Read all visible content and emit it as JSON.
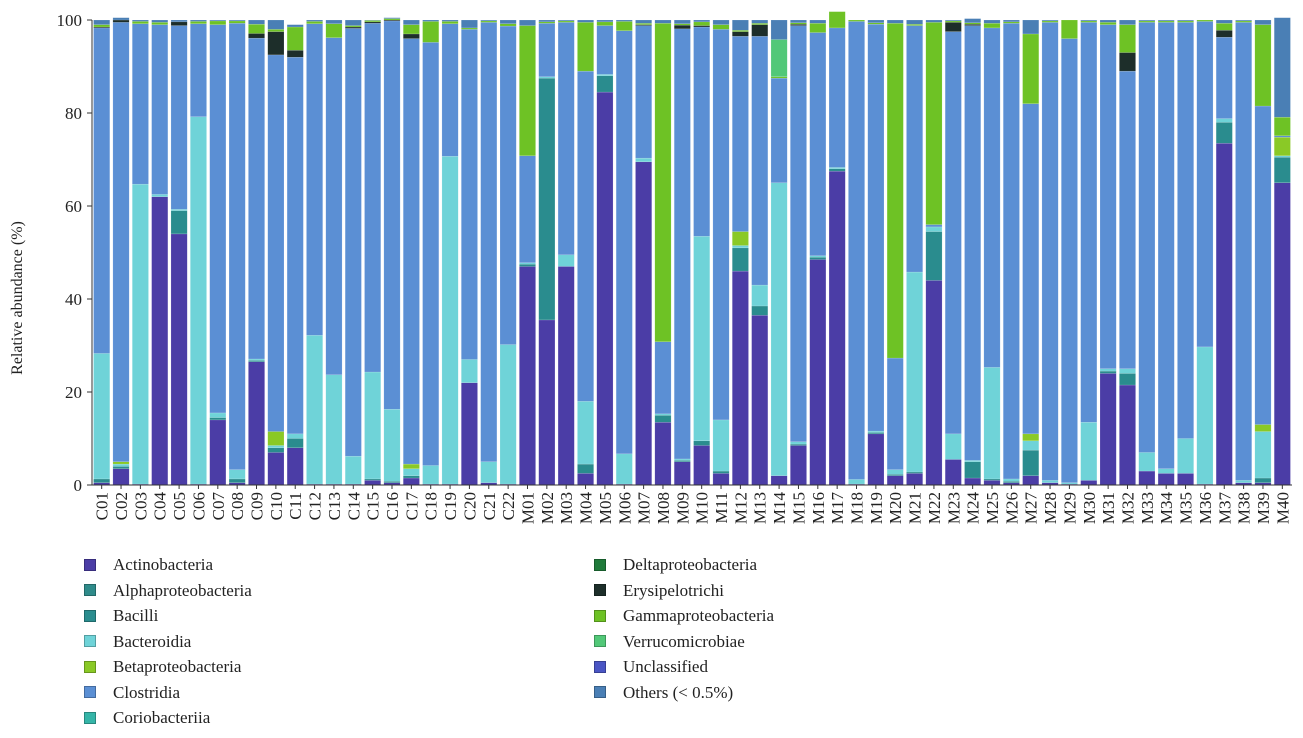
{
  "chart_data": {
    "type": "bar",
    "stacked": true,
    "title": "",
    "xlabel": "",
    "ylabel": "Relative abundance (%)",
    "ylim": [
      0,
      100
    ],
    "yticks": [
      0,
      20,
      40,
      60,
      80,
      100
    ],
    "grid": false,
    "legend_position": "bottom",
    "categories": [
      "C01",
      "C02",
      "C03",
      "C04",
      "C05",
      "C06",
      "C07",
      "C08",
      "C09",
      "C10",
      "C11",
      "C12",
      "C13",
      "C14",
      "C15",
      "C16",
      "C17",
      "C18",
      "C19",
      "C20",
      "C21",
      "C22",
      "M01",
      "M02",
      "M03",
      "M04",
      "M05",
      "M06",
      "M07",
      "M08",
      "M09",
      "M10",
      "M11",
      "M12",
      "M13",
      "M14",
      "M15",
      "M16",
      "M17",
      "M18",
      "M19",
      "M20",
      "M21",
      "M22",
      "M23",
      "M24",
      "M25",
      "M26",
      "M27",
      "M28",
      "M29",
      "M30",
      "M31",
      "M32",
      "M33",
      "M34",
      "M35",
      "M36",
      "M37",
      "M38",
      "M39",
      "M40"
    ],
    "series": [
      {
        "name": "Actinobacteria",
        "color": "#4b3da6",
        "values": [
          0.5,
          3.5,
          0.2,
          62.0,
          54.0,
          0.2,
          14.0,
          0.5,
          26.5,
          7.0,
          8.0,
          0.2,
          0.2,
          0.2,
          1.0,
          0.5,
          1.5,
          0.2,
          0.2,
          22.0,
          0.5,
          0.2,
          47.0,
          35.5,
          47.0,
          2.5,
          84.5,
          0.2,
          69.5,
          13.5,
          5.0,
          8.5,
          2.5,
          46.0,
          36.5,
          2.0,
          8.5,
          48.5,
          67.5,
          0.2,
          11.0,
          2.0,
          2.5,
          44.0,
          5.5,
          1.5,
          1.0,
          0.5,
          2.0,
          0.5,
          0.2,
          1.0,
          24.0,
          21.5,
          3.0,
          2.5,
          2.5,
          0.2,
          73.5,
          0.5,
          0.5,
          65.0
        ]
      },
      {
        "name": "Alphaproteobacteria",
        "color": "#2f8b8a",
        "values": [
          0,
          0,
          0,
          0,
          0,
          0,
          0,
          0,
          0,
          0,
          0,
          0,
          0,
          0,
          0,
          0,
          0,
          0,
          0,
          0,
          0,
          0,
          0,
          0,
          0,
          0,
          0,
          0,
          0,
          0,
          0,
          0,
          0,
          0,
          0,
          0,
          0,
          0,
          0,
          0,
          0,
          0,
          0,
          0,
          0,
          0,
          0,
          0,
          0,
          0,
          0,
          0,
          0,
          0,
          0,
          0,
          0,
          0,
          0,
          0,
          0,
          0
        ]
      },
      {
        "name": "Bacilli",
        "color": "#2a8c8e",
        "values": [
          0.8,
          0.5,
          0,
          0,
          5.0,
          0,
          0.5,
          0.8,
          0.3,
          1.0,
          2.0,
          0,
          0,
          0,
          0.3,
          0.3,
          0.5,
          0,
          0,
          0,
          0,
          0,
          0.5,
          52.0,
          0,
          2.0,
          3.5,
          0,
          0,
          1.5,
          0.3,
          1.0,
          0.5,
          5.0,
          2.0,
          0,
          0.3,
          0.5,
          0.5,
          0,
          0.3,
          0.3,
          0.3,
          10.5,
          0,
          3.5,
          0.3,
          0.3,
          5.5,
          0,
          0,
          0,
          0.5,
          2.5,
          0,
          0,
          0,
          0,
          4.5,
          0,
          1.0,
          5.5
        ]
      },
      {
        "name": "Bacteroidia",
        "color": "#6fd3d8",
        "values": [
          27.0,
          0.5,
          64.5,
          0.5,
          0.3,
          79.0,
          1.0,
          2.0,
          0.3,
          0.5,
          1.0,
          32.0,
          23.5,
          6.0,
          23.0,
          15.5,
          1.5,
          4.0,
          70.5,
          5.0,
          4.5,
          30.0,
          0.3,
          0.3,
          2.5,
          13.5,
          0.3,
          6.5,
          0.8,
          0.3,
          0.3,
          44.0,
          11.0,
          0.5,
          4.5,
          63.0,
          0.5,
          0.3,
          0.3,
          1.0,
          0.3,
          1.0,
          43.0,
          1.0,
          5.5,
          0.3,
          24.0,
          0.5,
          2.0,
          0.5,
          0.3,
          12.5,
          0.5,
          1.0,
          4.0,
          1.0,
          7.5,
          29.5,
          0.8,
          0.5,
          10.0,
          0.3
        ]
      },
      {
        "name": "Betaproteobacteria",
        "color": "#8ac926",
        "values": [
          0,
          0.5,
          0,
          0,
          0,
          0,
          0,
          0,
          0,
          3.0,
          0,
          0,
          0,
          0,
          0,
          0,
          1.0,
          0,
          0,
          0,
          0,
          0,
          0,
          0,
          0,
          0,
          0,
          0,
          0,
          0,
          0,
          0,
          0,
          3.0,
          0,
          0,
          0,
          0,
          0,
          0,
          0,
          0,
          0,
          0,
          0,
          0,
          0,
          0,
          1.5,
          0,
          0,
          0,
          0,
          0,
          0,
          0,
          0,
          0,
          0,
          0,
          1.5,
          4.0
        ]
      },
      {
        "name": "Clostridia",
        "color": "#5b8fd4",
        "values": [
          70.0,
          94.5,
          34.5,
          36.5,
          39.5,
          20.0,
          83.5,
          96.0,
          69.0,
          81.0,
          81.0,
          67.0,
          72.5,
          92.0,
          75.0,
          83.5,
          91.5,
          91.0,
          28.5,
          71.0,
          94.5,
          68.5,
          23.0,
          11.5,
          50.0,
          71.0,
          10.5,
          91.0,
          28.5,
          15.5,
          92.5,
          45.0,
          84.0,
          42.0,
          53.5,
          22.5,
          89.5,
          48.0,
          30.0,
          98.5,
          87.5,
          24.0,
          53.0,
          0.5,
          86.5,
          93.5,
          73.0,
          98.0,
          71.0,
          98.5,
          95.5,
          86.0,
          74.0,
          64.0,
          92.5,
          96.0,
          89.5,
          70.0,
          17.5,
          98.5,
          68.5,
          0.3
        ]
      },
      {
        "name": "Coriobacteriia",
        "color": "#35b5a8",
        "values": [
          0,
          0,
          0,
          0,
          0,
          0,
          0,
          0,
          0,
          0,
          0,
          0,
          0,
          0,
          0,
          0,
          0,
          0,
          0,
          0,
          0,
          0,
          0,
          0,
          0,
          0,
          0,
          0,
          0,
          0,
          0,
          0,
          0,
          0,
          0,
          0,
          0,
          0,
          0,
          0,
          0,
          0,
          0,
          0,
          0,
          0,
          0,
          0,
          0,
          0,
          0,
          0,
          0,
          0,
          0,
          0,
          0,
          0,
          0,
          0,
          0,
          0
        ]
      },
      {
        "name": "Deltaproteobacteria",
        "color": "#1f7a3a",
        "values": [
          0,
          0,
          0,
          0,
          0,
          0,
          0,
          0,
          0,
          0,
          0,
          0,
          0,
          0,
          0,
          0,
          0,
          0,
          0,
          0,
          0,
          0,
          0,
          0,
          0,
          0,
          0,
          0,
          0,
          0,
          0,
          0,
          0,
          0,
          0,
          0,
          0,
          0,
          0,
          0,
          0,
          0,
          0,
          0,
          0,
          0,
          0,
          0,
          0,
          0,
          0,
          0,
          0,
          0,
          0,
          0,
          0,
          0,
          0,
          0,
          0,
          0
        ]
      },
      {
        "name": "Erysipelotrichi",
        "color": "#1d2e2a",
        "values": [
          0.2,
          0.5,
          0,
          0,
          0.8,
          0,
          0,
          0,
          1.0,
          5.0,
          1.5,
          0,
          0,
          0.3,
          0.3,
          0.2,
          1.0,
          0,
          0,
          0,
          0,
          0,
          0,
          0,
          0,
          0,
          0,
          0,
          0.2,
          0,
          0.8,
          0.3,
          0,
          1.0,
          2.5,
          0,
          0.3,
          0,
          0,
          0,
          0,
          0,
          0,
          0,
          2.0,
          0.3,
          0,
          0,
          0,
          0,
          0,
          0,
          0,
          4.0,
          0,
          0,
          0,
          0,
          1.5,
          0,
          0,
          0
        ]
      },
      {
        "name": "Gammaproteobacteria",
        "color": "#6ec225",
        "values": [
          0.5,
          0,
          0.5,
          0.5,
          0,
          0.5,
          0.8,
          0.5,
          2.0,
          0.5,
          5.0,
          0.5,
          3.0,
          0.3,
          0.3,
          0.3,
          2.0,
          4.5,
          0.5,
          0.3,
          0.3,
          0.5,
          28.0,
          0.3,
          0.3,
          10.5,
          0.8,
          2.0,
          0.3,
          68.5,
          0.3,
          0.8,
          1.0,
          0.3,
          0.3,
          0.3,
          0.3,
          2.0,
          3.5,
          0.3,
          0.3,
          72.0,
          0.3,
          43.5,
          0.3,
          0.3,
          1.0,
          0.3,
          15.0,
          0.3,
          4.0,
          0.3,
          0.5,
          6.0,
          0.3,
          0.3,
          0.3,
          0.3,
          1.5,
          0.3,
          17.5,
          4.0
        ]
      },
      {
        "name": "Verrucomicrobiae",
        "color": "#52c878",
        "values": [
          0,
          0,
          0,
          0,
          0,
          0,
          0,
          0,
          0,
          0,
          0,
          0,
          0,
          0,
          0,
          0,
          0,
          0,
          0,
          0,
          0,
          0,
          0,
          0,
          0,
          0,
          0,
          0,
          0,
          0,
          0,
          0,
          0,
          0,
          0,
          8.0,
          0,
          0,
          0,
          0,
          0,
          0,
          0,
          0,
          0,
          0,
          0,
          0,
          0,
          0,
          0,
          0,
          0,
          0,
          0,
          0,
          0,
          0,
          0,
          0,
          0,
          0
        ]
      },
      {
        "name": "Unclassified",
        "color": "#4a55c4",
        "values": [
          0,
          0,
          0,
          0,
          0,
          0,
          0,
          0,
          0,
          0,
          0,
          0,
          0,
          0,
          0,
          0,
          0,
          0,
          0,
          0,
          0,
          0,
          0,
          0,
          0,
          0,
          0,
          0,
          0,
          0,
          0,
          0,
          0,
          0,
          0,
          0,
          0,
          0,
          0,
          0,
          0,
          0,
          0,
          0,
          0,
          0,
          0,
          0,
          0,
          0,
          0,
          0,
          0,
          0,
          0,
          0,
          0,
          0,
          0,
          0,
          0,
          0
        ]
      },
      {
        "name": "Others (< 0.5%)",
        "color": "#4a7fb5",
        "values": [
          1.0,
          0.5,
          0.3,
          0.5,
          0.4,
          0.3,
          0.2,
          0.2,
          0.9,
          2.0,
          0.5,
          0.3,
          0.8,
          1.2,
          0.1,
          0.2,
          1.0,
          0.3,
          0.3,
          1.7,
          0.2,
          0.8,
          1.2,
          0.4,
          0.2,
          0.5,
          0.4,
          0.3,
          0.7,
          0.7,
          0.8,
          0.4,
          1.0,
          2.2,
          0.7,
          4.2,
          0.6,
          0.7,
          -1.8,
          0,
          0.6,
          0.7,
          0.9,
          0.5,
          0.2,
          0.9,
          0.7,
          0.4,
          3.0,
          0.2,
          0,
          0.2,
          0.5,
          1.0,
          0.2,
          0.2,
          0.2,
          0,
          0.7,
          0.2,
          1.0,
          21.4
        ]
      }
    ]
  }
}
